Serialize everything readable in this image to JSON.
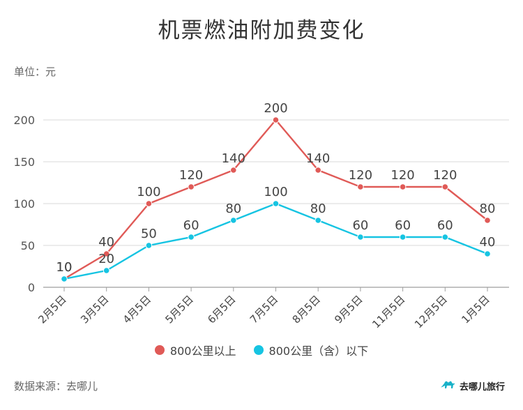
{
  "unit_label": "单位：元",
  "source": "数据来源：去哪儿",
  "brand": "去哪儿旅行",
  "colors": {
    "series1": "#e05a57",
    "series2": "#16c4e2",
    "grid": "#d9d9d9",
    "axis": "#9e9e9e",
    "text": "#444444"
  },
  "chart_data": {
    "type": "line",
    "title": "机票燃油附加费变化",
    "xlabel": "",
    "ylabel": "",
    "ylim": [
      0,
      200
    ],
    "yticks": [
      0,
      50,
      100,
      150,
      200
    ],
    "grid": true,
    "legend_position": "bottom",
    "categories": [
      "2月5日",
      "3月5日",
      "4月5日",
      "5月5日",
      "6月5日",
      "7月5日",
      "8月5日",
      "9月5日",
      "11月5日",
      "12月5日",
      "1月5日"
    ],
    "series": [
      {
        "name": "800公里以上",
        "color": "#e05a57",
        "values": [
          10,
          40,
          100,
          120,
          140,
          200,
          140,
          120,
          120,
          120,
          80
        ]
      },
      {
        "name": "800公里（含）以下",
        "color": "#16c4e2",
        "values": [
          10,
          20,
          50,
          60,
          80,
          100,
          80,
          60,
          60,
          60,
          40
        ]
      }
    ]
  }
}
